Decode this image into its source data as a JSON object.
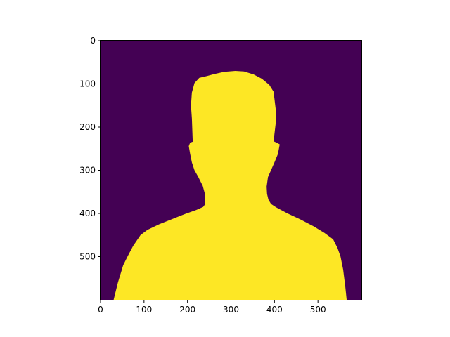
{
  "chart_data": {
    "type": "heatmap",
    "title": "",
    "xlabel": "",
    "ylabel": "",
    "image_width": 600,
    "image_height": 600,
    "xlim": [
      0,
      600
    ],
    "ylim": [
      600,
      0
    ],
    "x_ticks": [
      0,
      100,
      200,
      300,
      400,
      500
    ],
    "y_ticks": [
      0,
      100,
      200,
      300,
      400,
      500
    ],
    "x_tick_labels": [
      "0",
      "100",
      "200",
      "300",
      "400",
      "500"
    ],
    "y_tick_labels": [
      "0",
      "100",
      "200",
      "300",
      "400",
      "500"
    ],
    "grid": false,
    "colors": {
      "background_value": "#440154",
      "mask_value": "#fde725"
    },
    "mask_outline": [
      [
        30,
        600
      ],
      [
        40,
        560
      ],
      [
        52,
        520
      ],
      [
        62,
        500
      ],
      [
        75,
        475
      ],
      [
        92,
        450
      ],
      [
        108,
        438
      ],
      [
        135,
        425
      ],
      [
        165,
        413
      ],
      [
        195,
        401
      ],
      [
        220,
        392
      ],
      [
        236,
        385
      ],
      [
        241,
        378
      ],
      [
        241,
        358
      ],
      [
        235,
        336
      ],
      [
        225,
        316
      ],
      [
        216,
        300
      ],
      [
        210,
        282
      ],
      [
        206,
        262
      ],
      [
        203,
        244
      ],
      [
        206,
        236
      ],
      [
        212,
        234
      ],
      [
        210,
        180
      ],
      [
        208,
        150
      ],
      [
        210,
        120
      ],
      [
        216,
        98
      ],
      [
        227,
        86
      ],
      [
        244,
        82
      ],
      [
        262,
        77
      ],
      [
        285,
        72
      ],
      [
        310,
        70
      ],
      [
        330,
        71
      ],
      [
        352,
        78
      ],
      [
        371,
        88
      ],
      [
        388,
        102
      ],
      [
        398,
        118
      ],
      [
        403,
        160
      ],
      [
        403,
        190
      ],
      [
        398,
        233
      ],
      [
        405,
        236
      ],
      [
        412,
        240
      ],
      [
        408,
        262
      ],
      [
        400,
        282
      ],
      [
        392,
        300
      ],
      [
        385,
        316
      ],
      [
        382,
        338
      ],
      [
        383,
        355
      ],
      [
        386,
        368
      ],
      [
        392,
        378
      ],
      [
        404,
        386
      ],
      [
        430,
        400
      ],
      [
        460,
        414
      ],
      [
        490,
        430
      ],
      [
        515,
        445
      ],
      [
        535,
        460
      ],
      [
        545,
        480
      ],
      [
        552,
        500
      ],
      [
        558,
        530
      ],
      [
        563,
        570
      ],
      [
        566,
        600
      ]
    ]
  }
}
